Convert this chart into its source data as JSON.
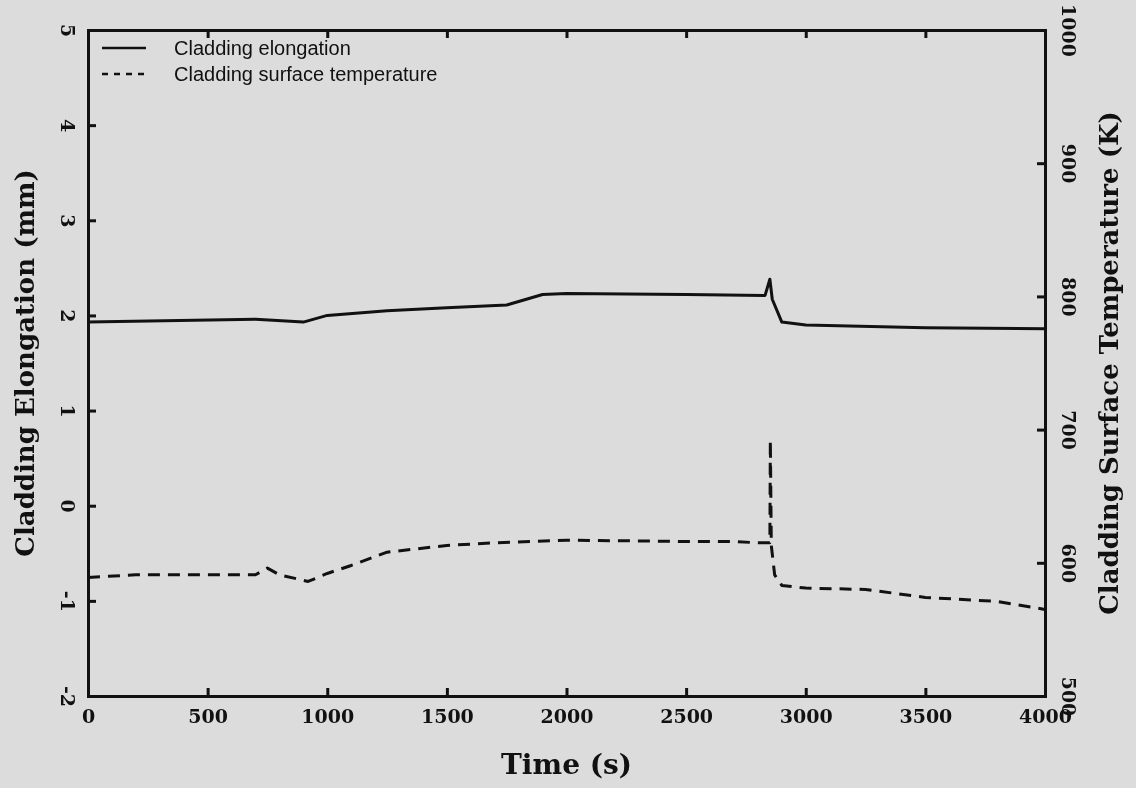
{
  "chart_data": {
    "type": "line",
    "xlabel": "Time (s)",
    "ylabel": "Cladding Elongation (mm)",
    "y2label": "Cladding Surface Temperature (K)",
    "xlim": [
      0,
      4000
    ],
    "xticks": [
      0,
      500,
      1000,
      1500,
      2000,
      2500,
      3000,
      3500,
      4000
    ],
    "ylim": [
      -2,
      5
    ],
    "yticks": [
      -2,
      -1,
      0,
      1,
      2,
      3,
      4,
      5
    ],
    "y2lim": [
      500,
      1000
    ],
    "y2ticks": [
      500,
      600,
      700,
      800,
      900,
      1000
    ],
    "grid": false,
    "legend": "top left",
    "marker": "none",
    "series": [
      {
        "name": "Cladding elongation",
        "color": "#111111",
        "line_style": "solid",
        "x": [
          0,
          700,
          900,
          1000,
          1250,
          1500,
          1750,
          1900,
          2000,
          2500,
          2830,
          2850,
          2860,
          2900,
          3000,
          3500,
          4000
        ],
        "values": [
          1.93,
          1.96,
          1.93,
          2.0,
          2.05,
          2.08,
          2.11,
          2.22,
          2.23,
          2.22,
          2.21,
          2.38,
          2.17,
          1.93,
          1.9,
          1.87,
          1.86
        ]
      },
      {
        "name": "Cladding surface temperature",
        "color": "#111111",
        "line_style": "dashed",
        "axis": "y2",
        "x": [
          0,
          200,
          500,
          700,
          750,
          800,
          920,
          1000,
          1100,
          1250,
          1500,
          1700,
          2000,
          2500,
          2700,
          2800,
          2850,
          2852,
          2856,
          2870,
          2900,
          3000,
          3250,
          3500,
          3800,
          4000
        ],
        "values": [
          589,
          591,
          591,
          591,
          596,
          591,
          586,
          592,
          598,
          608,
          613,
          615,
          617,
          616,
          616,
          615,
          615,
          692,
          613,
          591,
          583,
          581,
          580,
          574,
          571,
          565
        ]
      }
    ]
  }
}
